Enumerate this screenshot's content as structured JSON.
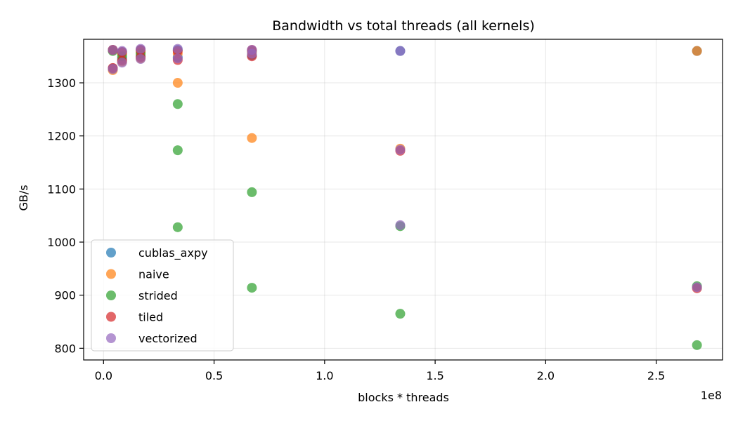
{
  "chart_data": {
    "type": "scatter",
    "title": "Bandwidth vs total threads (all kernels)",
    "xlabel": "blocks * threads",
    "ylabel": "GB/s",
    "x_offset_label": "1e8",
    "x_scale": 100000000,
    "xlim": [
      -0.09,
      2.8
    ],
    "ylim": [
      778,
      1382
    ],
    "xticks": [
      0.0,
      0.5,
      1.0,
      1.5,
      2.0,
      2.5
    ],
    "xtick_labels": [
      "0.0",
      "0.5",
      "1.0",
      "1.5",
      "2.0",
      "2.5"
    ],
    "yticks": [
      800,
      900,
      1000,
      1100,
      1200,
      1300
    ],
    "ytick_labels": [
      "800",
      "900",
      "1000",
      "1100",
      "1200",
      "1300"
    ],
    "grid": true,
    "legend_position": "lower-left",
    "series": [
      {
        "name": "cublas_axpy",
        "color": "#1f77b4",
        "points": [
          [
            4194304,
            1362
          ],
          [
            4194304,
            1327
          ],
          [
            8388608,
            1358
          ],
          [
            8388608,
            1345
          ],
          [
            16777216,
            1362
          ],
          [
            16777216,
            1350
          ],
          [
            33554432,
            1362
          ],
          [
            33554432,
            1348
          ],
          [
            67108864,
            1360
          ],
          [
            67108864,
            1352
          ],
          [
            134217728,
            1360
          ],
          [
            268435456,
            1360
          ]
        ]
      },
      {
        "name": "naive",
        "color": "#ff7f0e",
        "points": [
          [
            4194304,
            1362
          ],
          [
            4194304,
            1324
          ],
          [
            8388608,
            1355
          ],
          [
            8388608,
            1340
          ],
          [
            16777216,
            1358
          ],
          [
            16777216,
            1346
          ],
          [
            33554432,
            1355
          ],
          [
            33554432,
            1300
          ],
          [
            67108864,
            1358
          ],
          [
            67108864,
            1196
          ],
          [
            134217728,
            1176
          ],
          [
            268435456,
            1360
          ]
        ]
      },
      {
        "name": "strided",
        "color": "#2ca02c",
        "points": [
          [
            4194304,
            1360
          ],
          [
            8388608,
            1350
          ],
          [
            16777216,
            1355
          ],
          [
            33554432,
            1260
          ],
          [
            33554432,
            1173
          ],
          [
            33554432,
            1028
          ],
          [
            67108864,
            1094
          ],
          [
            67108864,
            914
          ],
          [
            134217728,
            1030
          ],
          [
            134217728,
            865
          ],
          [
            268435456,
            917
          ],
          [
            268435456,
            806
          ]
        ]
      },
      {
        "name": "tiled",
        "color": "#d62728",
        "points": [
          [
            4194304,
            1362
          ],
          [
            4194304,
            1328
          ],
          [
            8388608,
            1358
          ],
          [
            8388608,
            1342
          ],
          [
            16777216,
            1362
          ],
          [
            16777216,
            1348
          ],
          [
            33554432,
            1360
          ],
          [
            33554432,
            1343
          ],
          [
            67108864,
            1362
          ],
          [
            67108864,
            1350
          ],
          [
            134217728,
            1172
          ],
          [
            268435456,
            913
          ]
        ]
      },
      {
        "name": "vectorized",
        "color": "#9467bd",
        "points": [
          [
            4194304,
            1362
          ],
          [
            4194304,
            1326
          ],
          [
            8388608,
            1360
          ],
          [
            8388608,
            1338
          ],
          [
            16777216,
            1364
          ],
          [
            16777216,
            1345
          ],
          [
            33554432,
            1364
          ],
          [
            33554432,
            1346
          ],
          [
            67108864,
            1362
          ],
          [
            67108864,
            1355
          ],
          [
            134217728,
            1360
          ],
          [
            134217728,
            1174
          ],
          [
            134217728,
            1032
          ],
          [
            268435456,
            915
          ]
        ]
      }
    ]
  }
}
